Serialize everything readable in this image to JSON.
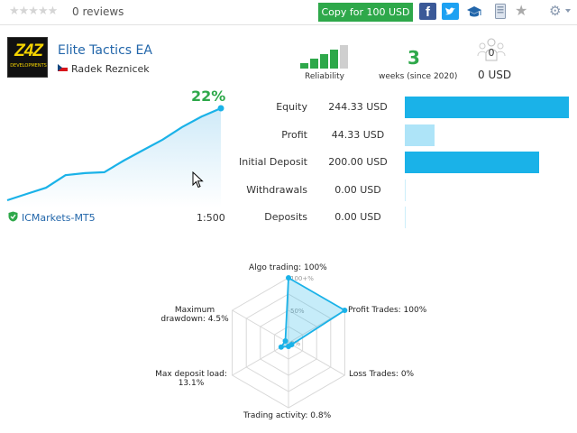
{
  "topbar": {
    "stars": "★★★★★",
    "reviews": "0 reviews",
    "copy_button": "Copy for 100 USD",
    "facebook": "f",
    "twitter": "t"
  },
  "header": {
    "logo_text": "Z4Z",
    "logo_subtext": "DEVELOPMENTS",
    "ea_name": "Elite Tactics EA",
    "author": "Radek Reznicek",
    "reliability_label": "Reliability",
    "reliability_level": 4,
    "reliability_max": 5,
    "weeks_value": "3",
    "weeks_label": "weeks (since 2020)",
    "subscribers_count": "0",
    "subscribers_funds": "0 USD"
  },
  "growth": {
    "percent": "22%",
    "broker": "ICMarkets-MT5",
    "leverage": "1:500",
    "points": [
      0,
      1.5,
      3,
      6,
      6.5,
      6.7,
      9.5,
      12,
      14.5,
      17.5,
      20,
      22
    ]
  },
  "stats": [
    {
      "label": "Equity",
      "value": "244.33 USD",
      "amount": 244.33
    },
    {
      "label": "Profit",
      "value": "44.33 USD",
      "amount": 44.33
    },
    {
      "label": "Initial Deposit",
      "value": "200.00 USD",
      "amount": 200.0
    },
    {
      "label": "Withdrawals",
      "value": "0.00 USD",
      "amount": 0
    },
    {
      "label": "Deposits",
      "value": "0.00 USD",
      "amount": 0
    }
  ],
  "radar": {
    "scale_labels": [
      "100+%",
      "50%",
      "0%"
    ],
    "axes": [
      {
        "label": "Algo trading: 100%",
        "value": 100
      },
      {
        "label": "Profit Trades: 100%",
        "value": 100
      },
      {
        "label": "Loss Trades: 0%",
        "value": 0
      },
      {
        "label": "Trading activity: 0.8%",
        "value": 0.8
      },
      {
        "label": "Max deposit load: 13.1%",
        "value": 13.1
      },
      {
        "label": "Maximum drawdown: 4.5%",
        "value": 4.5
      }
    ],
    "label_lines": {
      "algo": "Algo trading: 100%",
      "profit": "Profit Trades: 100%",
      "loss": "Loss Trades: 0%",
      "activity": "Trading activity: 0.8%",
      "load_1": "Max deposit load:",
      "load_2": "13.1%",
      "dd_1": "Maximum",
      "dd_2": "drawdown: 4.5%"
    }
  },
  "colors": {
    "green": "#2ea84a",
    "blue": "#1ab2e8",
    "link": "#2266aa"
  }
}
